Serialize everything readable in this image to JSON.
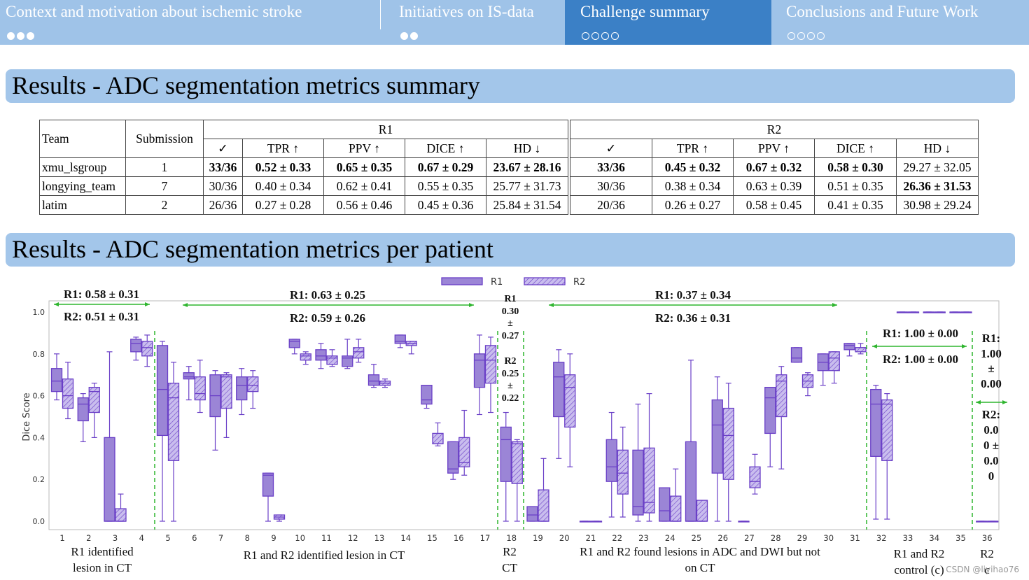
{
  "nav": {
    "sections": [
      {
        "title": "Context and motivation about ischemic stroke",
        "dots": 3,
        "filled": true
      },
      {
        "title": "Initiatives on IS-data",
        "dots": 2,
        "filled": true
      },
      {
        "title": "Challenge summary",
        "dots": 4,
        "filled": false,
        "active": true
      },
      {
        "title": "Conclusions  and Future Work",
        "dots": 4,
        "filled": false
      }
    ]
  },
  "banner1": "Results - ADC segmentation metrics summary",
  "banner2": "Results - ADC segmentation metrics per patient",
  "table": {
    "team_header": "Team",
    "submission_header": "Submission",
    "r1_header": "R1",
    "r2_header": "R2",
    "subheaders": [
      "✓",
      "TPR ↑",
      "PPV ↑",
      "DICE ↑",
      "HD ↓"
    ],
    "rows": [
      {
        "team": "xmu_lsgroup",
        "sub": "1",
        "r1": [
          "33/36",
          "0.52 ± 0.33",
          "0.65 ± 0.35",
          "0.67 ± 0.29",
          "23.67 ± 28.16"
        ],
        "r2": [
          "33/36",
          "0.45 ± 0.32",
          "0.67 ± 0.32",
          "0.58 ± 0.30",
          "29.27 ± 32.05"
        ],
        "r1_bold": [
          true,
          true,
          true,
          true,
          true
        ],
        "r2_bold": [
          true,
          true,
          true,
          true,
          false
        ]
      },
      {
        "team": "longying_team",
        "sub": "7",
        "r1": [
          "30/36",
          "0.40 ± 0.34",
          "0.62 ± 0.41",
          "0.55 ± 0.35",
          "25.77 ± 31.73"
        ],
        "r2": [
          "30/36",
          "0.38 ± 0.34",
          "0.63 ± 0.39",
          "0.51 ± 0.35",
          "26.36 ± 31.53"
        ],
        "r1_bold": [
          false,
          false,
          false,
          false,
          false
        ],
        "r2_bold": [
          false,
          false,
          false,
          false,
          true
        ]
      },
      {
        "team": "latim",
        "sub": "2",
        "r1": [
          "26/36",
          "0.27 ± 0.28",
          "0.56 ± 0.46",
          "0.45 ± 0.36",
          "25.84 ± 31.54"
        ],
        "r2": [
          "20/36",
          "0.26 ± 0.27",
          "0.58 ± 0.45",
          "0.41 ± 0.35",
          "30.98 ± 29.24"
        ],
        "r1_bold": [
          false,
          false,
          false,
          false,
          false
        ],
        "r2_bold": [
          false,
          false,
          false,
          false,
          false
        ]
      }
    ]
  },
  "colors": {
    "nav_bg": "#9fc3e8",
    "nav_active": "#3b80c6",
    "banner": "#a3c6ea",
    "box_fill": "#9b85d6",
    "box_stroke": "#6a3fc7",
    "green": "#2fb52f"
  },
  "chart_data": {
    "type": "box",
    "ylabel": "Dice Score",
    "ylim": [
      0,
      1.0
    ],
    "yticks": [
      "0.0",
      "0.2",
      "0.4",
      "0.6",
      "0.8",
      "1.0"
    ],
    "legend": [
      "R1",
      "R2"
    ],
    "categories": [
      "1",
      "2",
      "3",
      "4",
      "5",
      "6",
      "7",
      "8",
      "9",
      "10",
      "11",
      "12",
      "13",
      "14",
      "15",
      "16",
      "17",
      "18",
      "19",
      "20",
      "21",
      "22",
      "23",
      "24",
      "25",
      "26",
      "27",
      "28",
      "29",
      "30",
      "31",
      "32",
      "33",
      "34",
      "35",
      "36"
    ],
    "series": [
      {
        "name": "R1",
        "boxes": [
          [
            0.58,
            0.62,
            0.67,
            0.73,
            0.8
          ],
          [
            0.38,
            0.48,
            0.56,
            0.59,
            0.61
          ],
          [
            0.0,
            0.0,
            0.0,
            0.4,
            0.81
          ],
          [
            0.77,
            0.81,
            0.85,
            0.87,
            0.88
          ],
          [
            0.0,
            0.41,
            0.63,
            0.84,
            0.86
          ],
          [
            0.58,
            0.68,
            0.69,
            0.71,
            0.74
          ],
          [
            0.34,
            0.5,
            0.6,
            0.7,
            0.72
          ],
          [
            0.51,
            0.58,
            0.65,
            0.69,
            0.73
          ],
          [
            0.0,
            0.12,
            0.22,
            0.23,
            0.23
          ],
          [
            0.8,
            0.83,
            0.86,
            0.87,
            0.87
          ],
          [
            0.73,
            0.77,
            0.79,
            0.82,
            0.85
          ],
          [
            0.73,
            0.74,
            0.78,
            0.79,
            0.87
          ],
          [
            0.64,
            0.65,
            0.67,
            0.7,
            0.75
          ],
          [
            0.83,
            0.85,
            0.86,
            0.89,
            0.89
          ],
          [
            0.54,
            0.56,
            0.58,
            0.65,
            0.65
          ],
          [
            0.2,
            0.23,
            0.25,
            0.38,
            0.38
          ],
          [
            0.51,
            0.64,
            0.77,
            0.8,
            0.89
          ],
          [
            0.0,
            0.19,
            0.39,
            0.45,
            0.52
          ],
          [
            0.0,
            0.0,
            0.03,
            0.07,
            0.07
          ],
          [
            0.3,
            0.5,
            0.69,
            0.76,
            0.82
          ],
          [
            0.0,
            0.0,
            0.0,
            0.0,
            0.0
          ],
          [
            0.02,
            0.19,
            0.26,
            0.39,
            0.52
          ],
          [
            0.0,
            0.03,
            0.07,
            0.34,
            0.56
          ],
          [
            0.0,
            0.0,
            0.05,
            0.16,
            0.16
          ],
          [
            0.0,
            0.0,
            0.0,
            0.38,
            0.77
          ],
          [
            0.0,
            0.23,
            0.46,
            0.58,
            0.69
          ],
          [
            0.0,
            0.0,
            0.0,
            0.0,
            0.0
          ],
          [
            0.26,
            0.42,
            0.59,
            0.64,
            0.64
          ],
          [
            0.76,
            0.76,
            0.78,
            0.83,
            0.83
          ],
          [
            0.65,
            0.72,
            0.76,
            0.8,
            0.8
          ],
          [
            0.79,
            0.82,
            0.84,
            0.85,
            0.85
          ],
          [
            0.01,
            0.31,
            0.56,
            0.63,
            0.65
          ],
          [
            1.0,
            1.0,
            1.0,
            1.0,
            1.0
          ],
          [
            1.0,
            1.0,
            1.0,
            1.0,
            1.0
          ],
          [
            1.0,
            1.0,
            1.0,
            1.0,
            1.0
          ],
          [
            0.0,
            0.0,
            0.0,
            0.0,
            0.0
          ]
        ]
      },
      {
        "name": "R2",
        "boxes": [
          [
            0.49,
            0.54,
            0.6,
            0.68,
            0.76
          ],
          [
            0.4,
            0.52,
            0.62,
            0.64,
            0.66
          ],
          [
            0.0,
            0.0,
            0.0,
            0.06,
            0.13
          ],
          [
            0.74,
            0.79,
            0.83,
            0.86,
            0.89
          ],
          [
            0.0,
            0.29,
            0.59,
            0.66,
            0.76
          ],
          [
            0.52,
            0.58,
            0.61,
            0.69,
            0.77
          ],
          [
            0.4,
            0.54,
            0.69,
            0.7,
            0.71
          ],
          [
            0.54,
            0.62,
            0.65,
            0.69,
            0.72
          ],
          [
            0.0,
            0.01,
            0.02,
            0.03,
            0.03
          ],
          [
            0.75,
            0.77,
            0.79,
            0.8,
            0.81
          ],
          [
            0.74,
            0.75,
            0.78,
            0.79,
            0.82
          ],
          [
            0.76,
            0.78,
            0.81,
            0.83,
            0.87
          ],
          [
            0.64,
            0.65,
            0.66,
            0.67,
            0.68
          ],
          [
            0.8,
            0.84,
            0.85,
            0.86,
            0.86
          ],
          [
            0.36,
            0.37,
            0.37,
            0.42,
            0.47
          ],
          [
            0.22,
            0.26,
            0.28,
            0.4,
            0.53
          ],
          [
            0.52,
            0.66,
            0.77,
            0.84,
            0.88
          ],
          [
            0.0,
            0.18,
            0.37,
            0.38,
            0.39
          ],
          [
            0.0,
            0.0,
            0.0,
            0.15,
            0.3
          ],
          [
            0.26,
            0.45,
            0.64,
            0.7,
            0.8
          ],
          [
            0.0,
            0.0,
            0.0,
            0.0,
            0.0
          ],
          [
            0.02,
            0.13,
            0.23,
            0.34,
            0.45
          ],
          [
            0.0,
            0.04,
            0.09,
            0.35,
            0.61
          ],
          [
            0.0,
            0.0,
            0.0,
            0.12,
            0.25
          ],
          [
            0.0,
            0.0,
            0.0,
            0.1,
            0.1
          ],
          [
            0.0,
            0.2,
            0.41,
            0.54,
            0.66
          ],
          [
            0.13,
            0.16,
            0.19,
            0.26,
            0.32
          ],
          [
            0.25,
            0.5,
            0.67,
            0.7,
            0.74
          ],
          [
            0.6,
            0.64,
            0.67,
            0.7,
            0.71
          ],
          [
            0.66,
            0.72,
            0.78,
            0.81,
            0.81
          ],
          [
            0.8,
            0.81,
            0.83,
            0.83,
            0.85
          ],
          [
            0.01,
            0.29,
            0.56,
            0.58,
            0.61
          ],
          [
            1.0,
            1.0,
            1.0,
            1.0,
            1.0
          ],
          [
            1.0,
            1.0,
            1.0,
            1.0,
            1.0
          ],
          [
            1.0,
            1.0,
            1.0,
            1.0,
            1.0
          ],
          [
            0.0,
            0.0,
            0.0,
            0.0,
            0.0
          ]
        ]
      }
    ],
    "annotations": {
      "g1_r1": "R1: 0.58 ± 0.31",
      "g1_r2": "R2: 0.51 ± 0.31",
      "g2_r1": "R1: 0.63 ± 0.25",
      "g2_r2": "R2: 0.59 ± 0.26",
      "g3_r1": [
        "R1",
        "0.30",
        "±",
        "0.27"
      ],
      "g3_r2": [
        "R2",
        "0.25",
        "±",
        "0.22"
      ],
      "g4_r1": "R1: 0.37 ± 0.34",
      "g4_r2": "R2: 0.36 ± 0.31",
      "g5_r1": "R1: 1.00 ± 0.00",
      "g5_r2": "R2: 1.00 ± 0.00",
      "g6_r1": [
        "R1:",
        "1.00",
        "±",
        "0.00"
      ],
      "g6_r2": [
        "R2:",
        "0.0",
        "0 ±",
        "0.0",
        "0"
      ]
    },
    "group_labels": {
      "g1": [
        "R1 identified",
        "lesion in CT"
      ],
      "g2": [
        "R1 and R2 identified lesion in CT"
      ],
      "g3": [
        "R2",
        "CT"
      ],
      "g4": [
        "R1 and R2 found lesions in ADC and DWI but not",
        "on CT"
      ],
      "g5": [
        "R1 and R2",
        "control (c)"
      ],
      "g6": [
        "R2",
        "c"
      ]
    }
  },
  "watermark": "CSDN @liyihao76"
}
